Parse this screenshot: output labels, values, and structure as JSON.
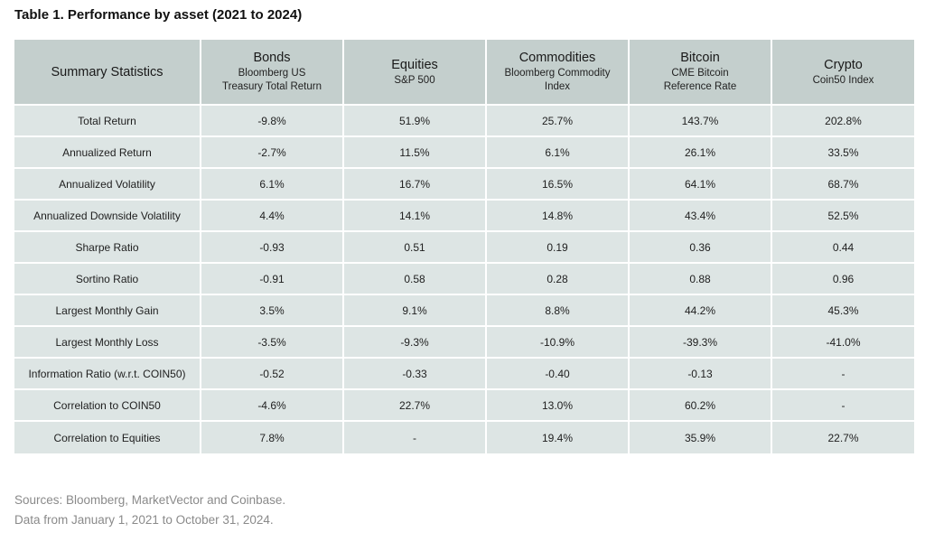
{
  "title": "Table 1. Performance by asset (2021 to 2024)",
  "header": {
    "stat_label": "Summary Statistics",
    "columns": [
      {
        "main": "Bonds",
        "sub": "Bloomberg US\nTreasury Total Return"
      },
      {
        "main": "Equities",
        "sub": "S&P 500"
      },
      {
        "main": "Commodities",
        "sub": "Bloomberg Commodity\nIndex"
      },
      {
        "main": "Bitcoin",
        "sub": "CME Bitcoin\nReference Rate"
      },
      {
        "main": "Crypto",
        "sub": "Coin50 Index"
      }
    ]
  },
  "rows": [
    {
      "label": "Total Return",
      "values": [
        "-9.8%",
        "51.9%",
        "25.7%",
        "143.7%",
        "202.8%"
      ]
    },
    {
      "label": "Annualized Return",
      "values": [
        "-2.7%",
        "11.5%",
        "6.1%",
        "26.1%",
        "33.5%"
      ]
    },
    {
      "label": "Annualized Volatility",
      "values": [
        "6.1%",
        "16.7%",
        "16.5%",
        "64.1%",
        "68.7%"
      ]
    },
    {
      "label": "Annualized Downside Volatility",
      "values": [
        "4.4%",
        "14.1%",
        "14.8%",
        "43.4%",
        "52.5%"
      ]
    },
    {
      "label": "Sharpe Ratio",
      "values": [
        "-0.93",
        "0.51",
        "0.19",
        "0.36",
        "0.44"
      ]
    },
    {
      "label": "Sortino Ratio",
      "values": [
        "-0.91",
        "0.58",
        "0.28",
        "0.88",
        "0.96"
      ]
    },
    {
      "label": "Largest Monthly Gain",
      "values": [
        "3.5%",
        "9.1%",
        "8.8%",
        "44.2%",
        "45.3%"
      ]
    },
    {
      "label": "Largest Monthly Loss",
      "values": [
        "-3.5%",
        "-9.3%",
        "-10.9%",
        "-39.3%",
        "-41.0%"
      ]
    },
    {
      "label": "Information Ratio (w.r.t. COIN50)",
      "values": [
        "-0.52",
        "-0.33",
        "-0.40",
        "-0.13",
        "-"
      ]
    },
    {
      "label": "Correlation to COIN50",
      "values": [
        "-4.6%",
        "22.7%",
        "13.0%",
        "60.2%",
        "-"
      ]
    },
    {
      "label": "Correlation to Equities",
      "values": [
        "7.8%",
        "-",
        "19.4%",
        "35.9%",
        "22.7%"
      ]
    }
  ],
  "footer": {
    "sources": "Sources: Bloomberg, MarketVector and Coinbase.",
    "date_range": "Data from January 1, 2021 to October 31, 2024."
  },
  "colors": {
    "header_bg": "#c4cfcd",
    "cell_bg": "#dde5e4",
    "footer_text": "#8a8a8a"
  }
}
